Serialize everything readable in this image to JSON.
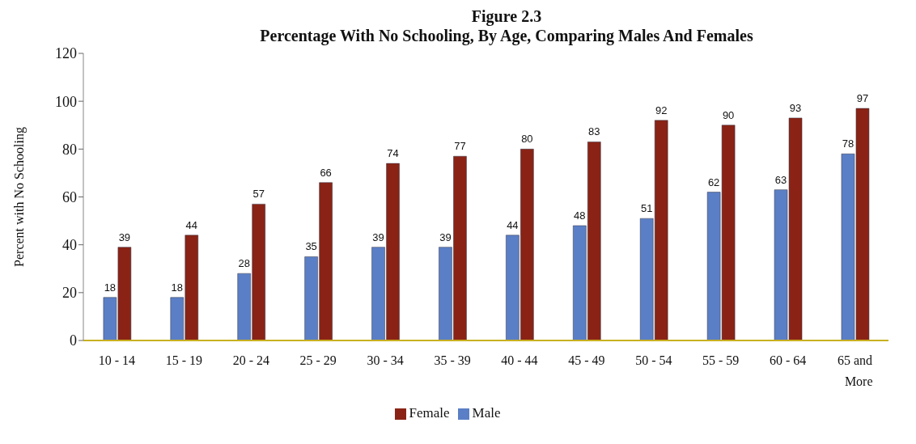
{
  "chart_data": {
    "type": "bar",
    "title": "Figure 2.3",
    "subtitle": "Percentage With No Schooling, By Age, Comparing Males And Females",
    "ylabel": "Percent with No Schooling",
    "categories": [
      "10 - 14",
      "15 - 19",
      "20 - 24",
      "25 - 29",
      "30 - 34",
      "35 - 39",
      "40 - 44",
      "45 - 49",
      "50 - 54",
      "55 - 59",
      "60 - 64",
      "65 and More"
    ],
    "series": [
      {
        "name": "Male",
        "color": "#5b7fc6",
        "values": [
          18,
          18,
          28,
          35,
          39,
          39,
          44,
          48,
          51,
          62,
          63,
          78
        ]
      },
      {
        "name": "Female",
        "color": "#8a2315",
        "values": [
          39,
          44,
          57,
          66,
          74,
          77,
          80,
          83,
          92,
          90,
          93,
          97
        ]
      }
    ],
    "ylim": [
      0,
      120
    ],
    "yticks": [
      0,
      20,
      40,
      60,
      80,
      100,
      120
    ],
    "grid": false,
    "legend": "bottom",
    "data_labels": true
  }
}
